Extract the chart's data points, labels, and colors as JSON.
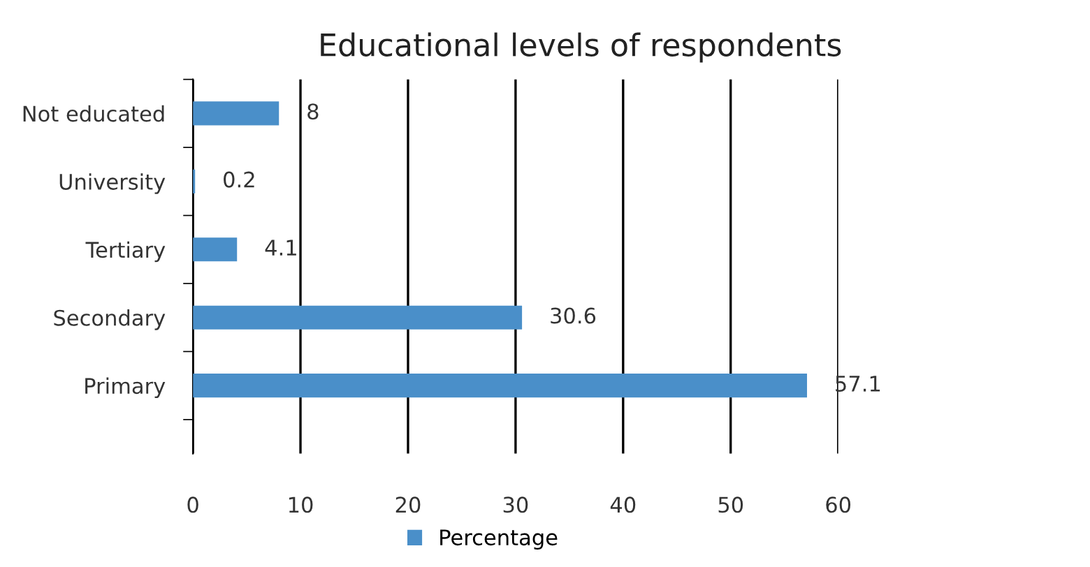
{
  "chart_data": {
    "type": "bar",
    "orientation": "horizontal",
    "title": "Educational levels of respondents",
    "categories": [
      "Not educated",
      "University",
      "Tertiary",
      "Secondary",
      "Primary"
    ],
    "series": [
      {
        "name": "Percentage",
        "color": "#4a8fc9",
        "values": [
          8,
          0.2,
          4.1,
          30.6,
          57.1
        ]
      }
    ],
    "xlim": [
      0,
      60
    ],
    "xticks": [
      0,
      10,
      20,
      30,
      40,
      50,
      60
    ],
    "grid": "x",
    "legend": "bottom",
    "data_labels": true
  }
}
